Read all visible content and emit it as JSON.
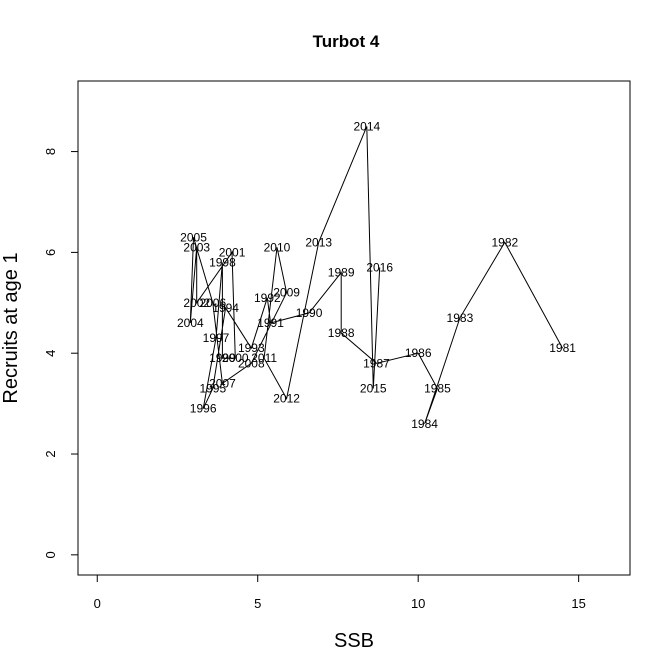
{
  "chart_data": {
    "type": "line",
    "title": "Turbot 4",
    "xlabel": "SSB",
    "ylabel": "Recruits at age 1",
    "xlim": [
      -0.6,
      16.6
    ],
    "ylim": [
      -0.4,
      9.4
    ],
    "xticks": [
      0,
      5,
      10,
      15
    ],
    "yticks": [
      0,
      2,
      4,
      6,
      8
    ],
    "grid": false,
    "legend": "none",
    "line_color": "#000000",
    "points": [
      {
        "year": "1981",
        "x": 14.5,
        "y": 4.1
      },
      {
        "year": "1982",
        "x": 12.7,
        "y": 6.2
      },
      {
        "year": "1983",
        "x": 11.3,
        "y": 4.7
      },
      {
        "year": "1984",
        "x": 10.2,
        "y": 2.6
      },
      {
        "year": "1985",
        "x": 10.6,
        "y": 3.3
      },
      {
        "year": "1986",
        "x": 10.0,
        "y": 4.0
      },
      {
        "year": "1987",
        "x": 8.7,
        "y": 3.8
      },
      {
        "year": "1988",
        "x": 7.6,
        "y": 4.4
      },
      {
        "year": "1989",
        "x": 7.6,
        "y": 5.6
      },
      {
        "year": "1990",
        "x": 6.6,
        "y": 4.8
      },
      {
        "year": "1991",
        "x": 5.4,
        "y": 4.6
      },
      {
        "year": "1992",
        "x": 5.3,
        "y": 5.1
      },
      {
        "year": "1993",
        "x": 4.8,
        "y": 4.1
      },
      {
        "year": "1994",
        "x": 4.0,
        "y": 4.9
      },
      {
        "year": "1995",
        "x": 3.6,
        "y": 3.3
      },
      {
        "year": "1996",
        "x": 3.3,
        "y": 2.9
      },
      {
        "year": "1997",
        "x": 3.7,
        "y": 4.3
      },
      {
        "year": "1998",
        "x": 3.9,
        "y": 5.8
      },
      {
        "year": "1999",
        "x": 3.9,
        "y": 3.9
      },
      {
        "year": "2000",
        "x": 4.3,
        "y": 3.9
      },
      {
        "year": "2001",
        "x": 4.2,
        "y": 6.0
      },
      {
        "year": "2002",
        "x": 3.1,
        "y": 5.0
      },
      {
        "year": "2003",
        "x": 3.1,
        "y": 6.1
      },
      {
        "year": "2004",
        "x": 2.9,
        "y": 4.6
      },
      {
        "year": "2005",
        "x": 3.0,
        "y": 6.3
      },
      {
        "year": "2006",
        "x": 3.6,
        "y": 5.0
      },
      {
        "year": "2007",
        "x": 3.9,
        "y": 3.4
      },
      {
        "year": "2008",
        "x": 4.8,
        "y": 3.8
      },
      {
        "year": "2009",
        "x": 5.9,
        "y": 5.2
      },
      {
        "year": "2010",
        "x": 5.6,
        "y": 6.1
      },
      {
        "year": "2011",
        "x": 5.2,
        "y": 3.9
      },
      {
        "year": "2012",
        "x": 5.9,
        "y": 3.1
      },
      {
        "year": "2013",
        "x": 6.9,
        "y": 6.2
      },
      {
        "year": "2014",
        "x": 8.4,
        "y": 8.5
      },
      {
        "year": "2015",
        "x": 8.6,
        "y": 3.3
      },
      {
        "year": "2016",
        "x": 8.8,
        "y": 5.7
      }
    ]
  }
}
